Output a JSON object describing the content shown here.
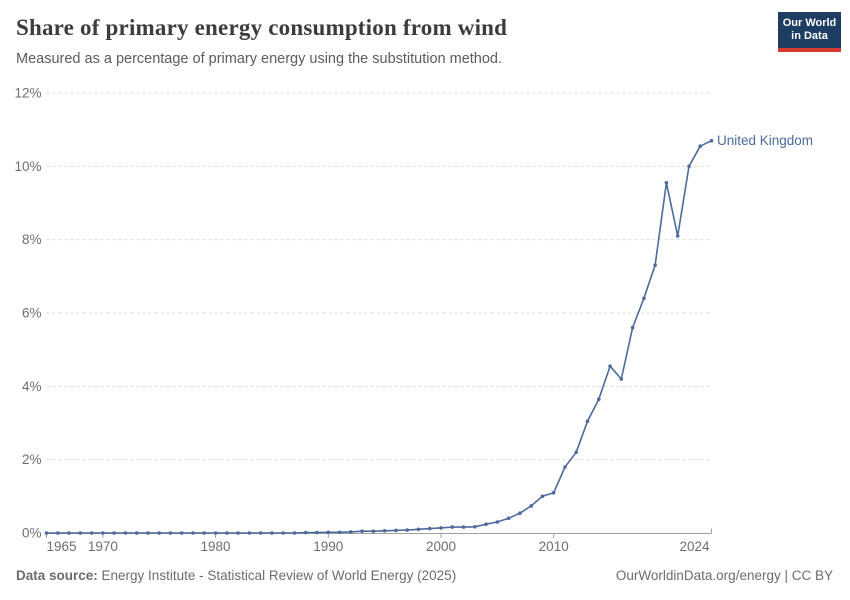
{
  "header": {
    "title": "Share of primary energy consumption from wind",
    "subtitle": "Measured as a percentage of primary energy using the substitution method.",
    "logo": {
      "line1": "Our World",
      "line2": "in Data",
      "bg_color": "#1d3d63",
      "accent_color": "#d23b2e"
    }
  },
  "chart_data": {
    "type": "line",
    "title": "Share of primary energy consumption from wind",
    "subtitle": "Measured as a percentage of primary energy using the substitution method.",
    "entity_label": "United Kingdom",
    "xlim": [
      1965,
      2024
    ],
    "ylim": [
      0,
      12
    ],
    "grid": "horizontal-dashed",
    "legend_position": "end-of-line-label",
    "colors": {
      "line": "#4c6a9c",
      "gridline": "#d9d9d9",
      "axis": "#a1a1a1",
      "tick_label": "#6e6e6e"
    },
    "x_ticks": [
      {
        "value": 1965,
        "label": "1965"
      },
      {
        "value": 1970,
        "label": "1970"
      },
      {
        "value": 1980,
        "label": "1980"
      },
      {
        "value": 1990,
        "label": "1990"
      },
      {
        "value": 2000,
        "label": "2000"
      },
      {
        "value": 2010,
        "label": "2010"
      },
      {
        "value": 2024,
        "label": "2024"
      }
    ],
    "y_ticks": [
      {
        "value": 0,
        "label": "0%"
      },
      {
        "value": 2,
        "label": "2%"
      },
      {
        "value": 4,
        "label": "4%"
      },
      {
        "value": 6,
        "label": "6%"
      },
      {
        "value": 8,
        "label": "8%"
      },
      {
        "value": 10,
        "label": "10%"
      },
      {
        "value": 12,
        "label": "12%"
      }
    ],
    "series": [
      {
        "name": "United Kingdom",
        "color": "#4c6a9c",
        "x": [
          1965,
          1966,
          1967,
          1968,
          1969,
          1970,
          1971,
          1972,
          1973,
          1974,
          1975,
          1976,
          1977,
          1978,
          1979,
          1980,
          1981,
          1982,
          1983,
          1984,
          1985,
          1986,
          1987,
          1988,
          1989,
          1990,
          1991,
          1992,
          1993,
          1994,
          1995,
          1996,
          1997,
          1998,
          1999,
          2000,
          2001,
          2002,
          2003,
          2004,
          2005,
          2006,
          2007,
          2008,
          2009,
          2010,
          2011,
          2012,
          2013,
          2014,
          2015,
          2016,
          2017,
          2018,
          2019,
          2020,
          2021,
          2022,
          2023,
          2024
        ],
        "values": [
          0,
          0,
          0,
          0,
          0,
          0,
          0,
          0,
          0,
          0,
          0,
          0,
          0,
          0,
          0,
          0,
          0,
          0,
          0,
          0,
          0,
          0,
          0,
          0.01,
          0.01,
          0.02,
          0.02,
          0.03,
          0.05,
          0.05,
          0.06,
          0.07,
          0.08,
          0.1,
          0.12,
          0.14,
          0.16,
          0.16,
          0.17,
          0.24,
          0.3,
          0.4,
          0.54,
          0.74,
          1.0,
          1.1,
          1.8,
          2.2,
          3.05,
          3.65,
          4.55,
          4.2,
          5.6,
          6.4,
          7.3,
          9.55,
          8.1,
          10.0,
          10.55,
          10.7
        ]
      }
    ]
  },
  "footer": {
    "source_label": "Data source:",
    "source_text": "Energy Institute - Statistical Review of World Energy (2025)",
    "attribution": "OurWorldinData.org/energy | CC BY"
  }
}
